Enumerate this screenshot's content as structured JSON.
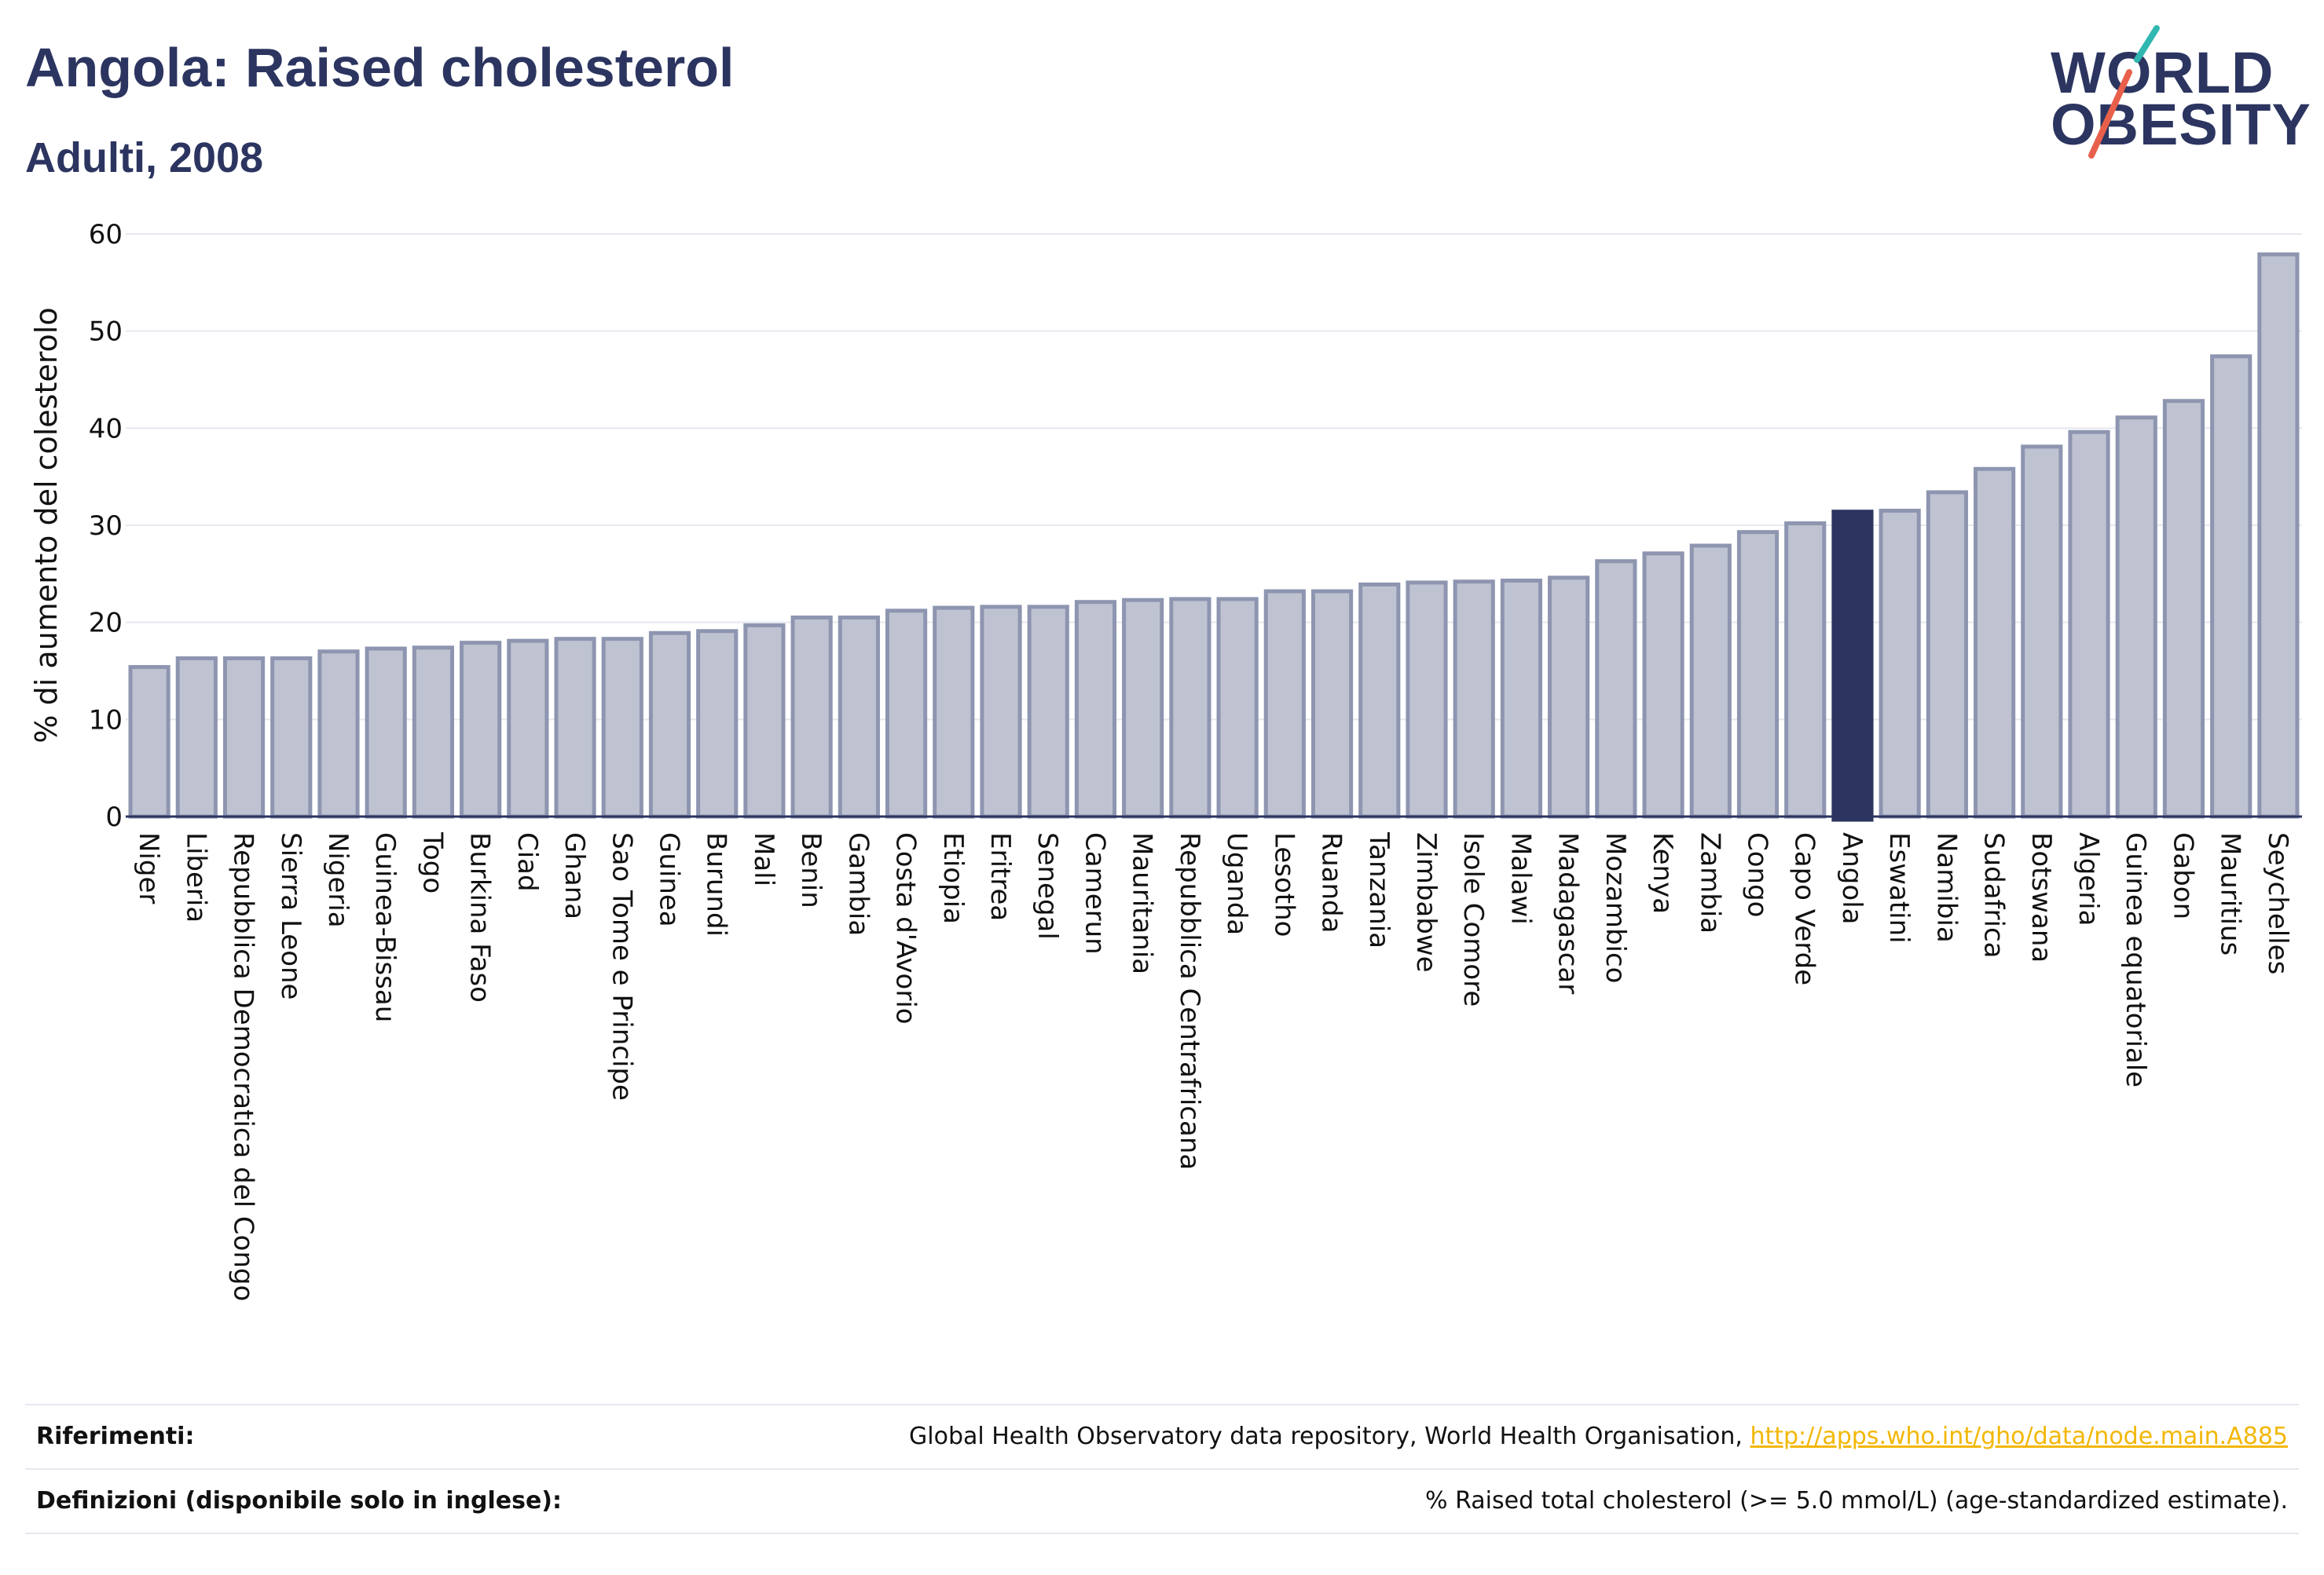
{
  "header": {
    "title": "Angola: Raised cholesterol",
    "subtitle": "Adulti, 2008"
  },
  "logo": {
    "line1": "WORLD",
    "line2": "OBESITY"
  },
  "colors": {
    "bar_fill": "#bfc3d1",
    "bar_stroke": "#8e95b0",
    "highlight": "#2c3560",
    "grid": "#e6e8ef",
    "logo_teal": "#2fb7b0",
    "logo_coral": "#e8604c",
    "link": "#f2b705"
  },
  "chart_data": {
    "type": "bar",
    "ylabel": "% di aumento del colesterolo",
    "xlabel": "",
    "ylim": [
      0,
      60
    ],
    "yticks": [
      0,
      10,
      20,
      30,
      40,
      50,
      60
    ],
    "grid": true,
    "highlight": "Angola",
    "categories": [
      "Niger",
      "Liberia",
      "Repubblica Democratica del Congo",
      "Sierra Leone",
      "Nigeria",
      "Guinea-Bissau",
      "Togo",
      "Burkina Faso",
      "Ciad",
      "Ghana",
      "Sao Tome e Principe",
      "Guinea",
      "Burundi",
      "Mali",
      "Benin",
      "Gambia",
      "Costa d'Avorio",
      "Etiopia",
      "Eritrea",
      "Senegal",
      "Camerun",
      "Mauritania",
      "Repubblica Centrafricana",
      "Uganda",
      "Lesotho",
      "Ruanda",
      "Tanzania",
      "Zimbabwe",
      "Isole Comore",
      "Malawi",
      "Madagascar",
      "Mozambico",
      "Kenya",
      "Zambia",
      "Congo",
      "Capo Verde",
      "Angola",
      "Eswatini",
      "Namibia",
      "Sudafrica",
      "Botswana",
      "Algeria",
      "Guinea equatoriale",
      "Gabon",
      "Mauritius",
      "Seychelles"
    ],
    "values": [
      15.4,
      16.3,
      16.3,
      16.3,
      17.0,
      17.3,
      17.4,
      17.9,
      18.1,
      18.3,
      18.3,
      18.9,
      19.1,
      19.7,
      20.5,
      20.5,
      21.2,
      21.5,
      21.6,
      21.6,
      22.1,
      22.3,
      22.4,
      22.4,
      23.2,
      23.2,
      23.9,
      24.1,
      24.2,
      24.3,
      24.6,
      26.3,
      27.1,
      27.9,
      29.3,
      30.2,
      31.4,
      31.5,
      33.4,
      35.8,
      38.1,
      39.6,
      41.1,
      42.8,
      47.4,
      57.9
    ]
  },
  "footer": {
    "ref_label": "Riferimenti:",
    "ref_text": "Global Health Observatory data repository, World Health Organisation, ",
    "ref_link": "http://apps.who.int/gho/data/node.main.A885",
    "def_label": "Definizioni (disponibile solo in inglese):",
    "def_text": "% Raised total cholesterol (>= 5.0 mmol/L) (age-standardized estimate)."
  }
}
